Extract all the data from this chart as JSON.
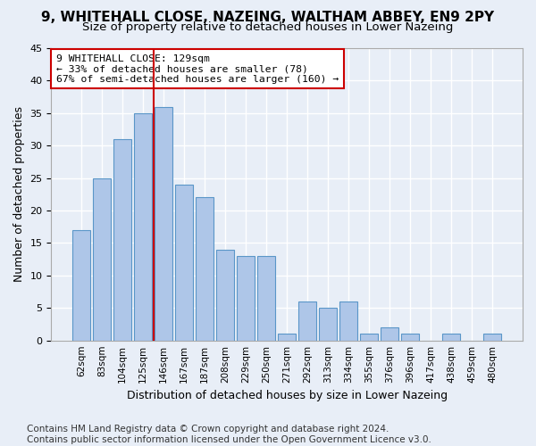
{
  "title": "9, WHITEHALL CLOSE, NAZEING, WALTHAM ABBEY, EN9 2PY",
  "subtitle": "Size of property relative to detached houses in Lower Nazeing",
  "xlabel": "Distribution of detached houses by size in Lower Nazeing",
  "ylabel": "Number of detached properties",
  "bar_values": [
    17,
    25,
    31,
    35,
    36,
    24,
    22,
    14,
    13,
    13,
    1,
    6,
    5,
    6,
    1,
    2,
    1,
    0,
    1,
    0,
    1
  ],
  "categories": [
    "62sqm",
    "83sqm",
    "104sqm",
    "125sqm",
    "146sqm",
    "167sqm",
    "187sqm",
    "208sqm",
    "229sqm",
    "250sqm",
    "271sqm",
    "292sqm",
    "313sqm",
    "334sqm",
    "355sqm",
    "376sqm",
    "396sqm",
    "417sqm",
    "438sqm",
    "459sqm",
    "480sqm"
  ],
  "bar_color": "#aec6e8",
  "bar_edge_color": "#5a96c8",
  "vline_x": 3.5,
  "vline_color": "#cc0000",
  "annotation_text": "9 WHITEHALL CLOSE: 129sqm\n← 33% of detached houses are smaller (78)\n67% of semi-detached houses are larger (160) →",
  "annotation_box_color": "#ffffff",
  "annotation_box_edge_color": "#cc0000",
  "ylim": [
    0,
    45
  ],
  "yticks": [
    0,
    5,
    10,
    15,
    20,
    25,
    30,
    35,
    40,
    45
  ],
  "background_color": "#e8eef7",
  "grid_color": "#ffffff",
  "footer": "Contains HM Land Registry data © Crown copyright and database right 2024.\nContains public sector information licensed under the Open Government Licence v3.0.",
  "title_fontsize": 11,
  "subtitle_fontsize": 9.5,
  "xlabel_fontsize": 9,
  "ylabel_fontsize": 9,
  "footer_fontsize": 7.5
}
